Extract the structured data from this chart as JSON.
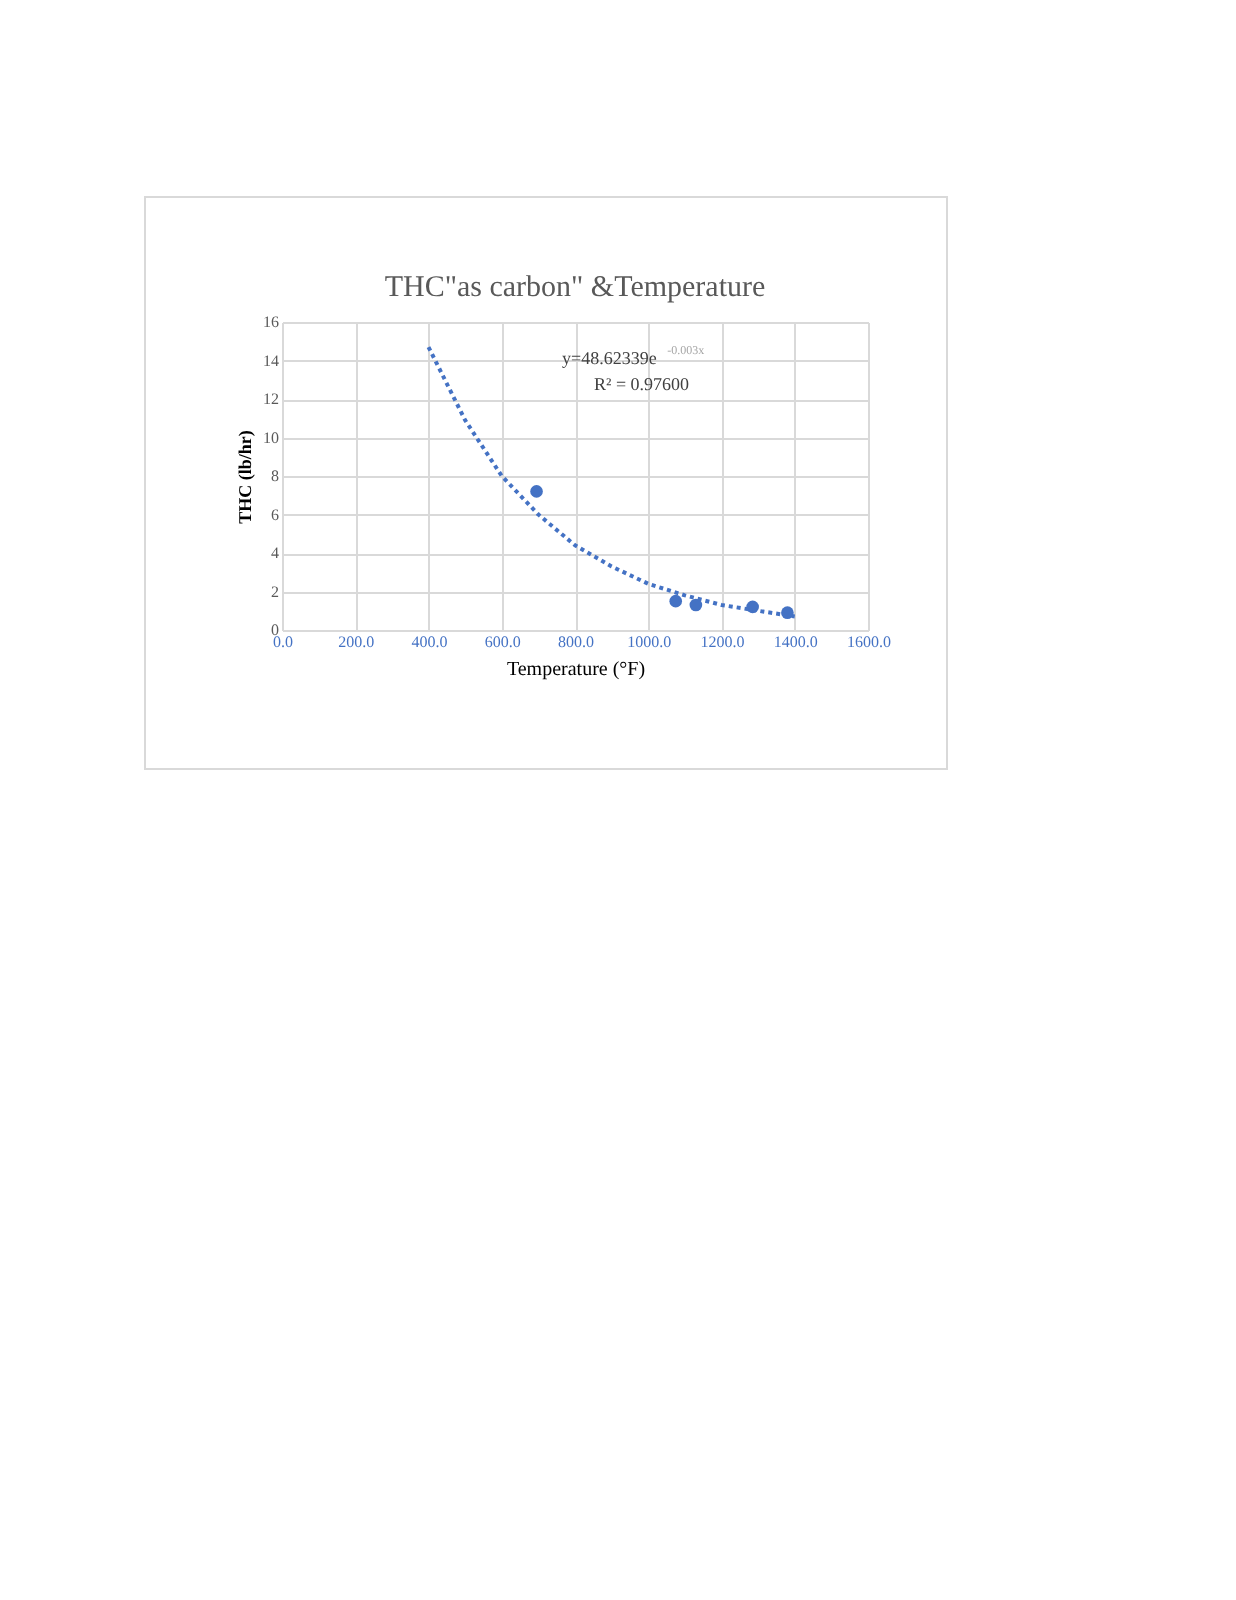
{
  "chart_data": {
    "type": "scatter",
    "title": "THC\"as carbon\" &Temperature",
    "xlabel": "Temperature    (°F)",
    "ylabel": "THC (lb/hr)",
    "annotations": [
      "y=48.62339e$^{-0.003x}$",
      "R² = 0.97600"
    ],
    "xlim": [
      0,
      1600
    ],
    "xticks": [
      {
        "value": 0,
        "label": "0.0"
      },
      {
        "value": 200,
        "label": "200.0"
      },
      {
        "value": 400,
        "label": "400.0"
      },
      {
        "value": 600,
        "label": "600.0"
      },
      {
        "value": 800,
        "label": "800.0"
      },
      {
        "value": 1000,
        "label": "1000.0"
      },
      {
        "value": 1200,
        "label": "1200.0"
      },
      {
        "value": 1400,
        "label": "1400.0"
      },
      {
        "value": 1600,
        "label": "1600.0"
      }
    ],
    "ylim": [
      0,
      16
    ],
    "yticks": [
      0,
      2,
      4,
      6,
      8,
      10,
      12,
      14,
      16
    ],
    "grid": true,
    "marker": "circle",
    "series": [
      {
        "color": "#4472c4",
        "x": [
          695,
          1075,
          1130,
          1285,
          1380
        ],
        "values": [
          7.2,
          1.5,
          1.3,
          1.2,
          0.9
        ]
      },
      {
        "type": "line",
        "marker": "none",
        "line_style": "dotted",
        "color": "#4472c4",
        "x": [
          400,
          500,
          600,
          700,
          800,
          900,
          1000,
          1100,
          1200,
          1300,
          1400
        ],
        "values": [
          14.7,
          10.9,
          8.0,
          6.0,
          4.4,
          3.3,
          2.4,
          1.8,
          1.3,
          1.0,
          0.7
        ]
      }
    ]
  }
}
